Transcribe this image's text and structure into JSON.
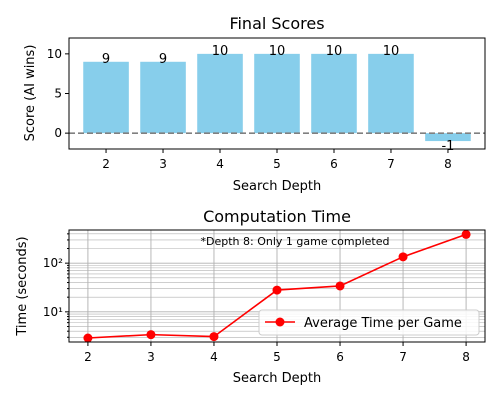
{
  "chart_data": [
    {
      "type": "bar",
      "title": "Final Scores",
      "xlabel": "Search Depth",
      "ylabel": "Score (AI wins)",
      "categories": [
        "2",
        "3",
        "4",
        "5",
        "6",
        "7",
        "8"
      ],
      "values": [
        9,
        9,
        10,
        10,
        10,
        10,
        -1
      ],
      "value_labels": [
        "9",
        "9",
        "10",
        "10",
        "10",
        "10",
        "-1"
      ],
      "yticks": [
        "0",
        "5",
        "10"
      ],
      "ylim": [
        -2,
        12
      ],
      "bar_color": "#87CEEB",
      "reference_line": {
        "y": 0,
        "style": "dashed",
        "color": "#808080"
      }
    },
    {
      "type": "line",
      "title": "Computation Time",
      "xlabel": "Search Depth",
      "ylabel": "Time (seconds)",
      "x": [
        2,
        3,
        4,
        5,
        6,
        7,
        8
      ],
      "xticks": [
        "2",
        "3",
        "4",
        "5",
        "6",
        "7",
        "8"
      ],
      "yscale": "log",
      "ylim": [
        2.4,
        480
      ],
      "yticks": [
        "10¹",
        "10²"
      ],
      "grid": true,
      "series": [
        {
          "name": "Average Time per Game",
          "values": [
            2.9,
            3.4,
            3.1,
            28,
            34,
            135,
            390
          ],
          "color": "#FF0000",
          "marker": "circle"
        }
      ],
      "annotation": "*Depth 8: Only 1 game completed",
      "legend_position": "lower-right"
    }
  ]
}
